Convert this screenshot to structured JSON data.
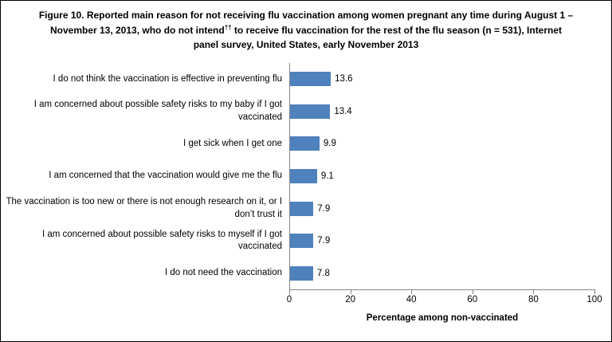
{
  "figure": {
    "title": {
      "part1": "Figure 10.  Reported main reason for not receiving flu vaccination among women pregnant any time during August 1 – November 13, 2013, who do not intend",
      "sup": "††",
      "part2": " to receive flu vaccination for the rest of the flu season (n = 531), Internet panel survey, United States, early November 2013"
    }
  },
  "chart_data": {
    "type": "bar",
    "orientation": "horizontal",
    "categories": [
      "I do not think the vaccination is effective in preventing flu",
      "I am concerned about possible safety risks to my baby if I got vaccinated",
      "I get sick when I get one",
      "I am concerned that the vaccination would give me the flu",
      "The vaccination is too new or there is not enough research on it, or I don’t trust it",
      "I am concerned about possible safety risks to myself if I got vaccinated",
      "I do not need the vaccination"
    ],
    "values": [
      13.6,
      13.4,
      9.9,
      9.1,
      7.9,
      7.9,
      7.8
    ],
    "value_label_decimals": 1,
    "title": "Figure 10. Reported main reason for not receiving flu vaccination among women pregnant any time during August 1 – November 13, 2013, who do not intend†† to receive flu vaccination for the rest of the flu season (n = 531), Internet panel survey, United States, early November 2013",
    "xlabel": "Percentage among non-vaccinated",
    "ylabel": "",
    "xlim": [
      0,
      100
    ],
    "xticks": [
      0,
      20,
      40,
      60,
      80,
      100
    ],
    "grid": false,
    "legend_position": "none",
    "bar_color": "#4F81BD",
    "axis_color": "#868686",
    "text_color": "#000000"
  }
}
